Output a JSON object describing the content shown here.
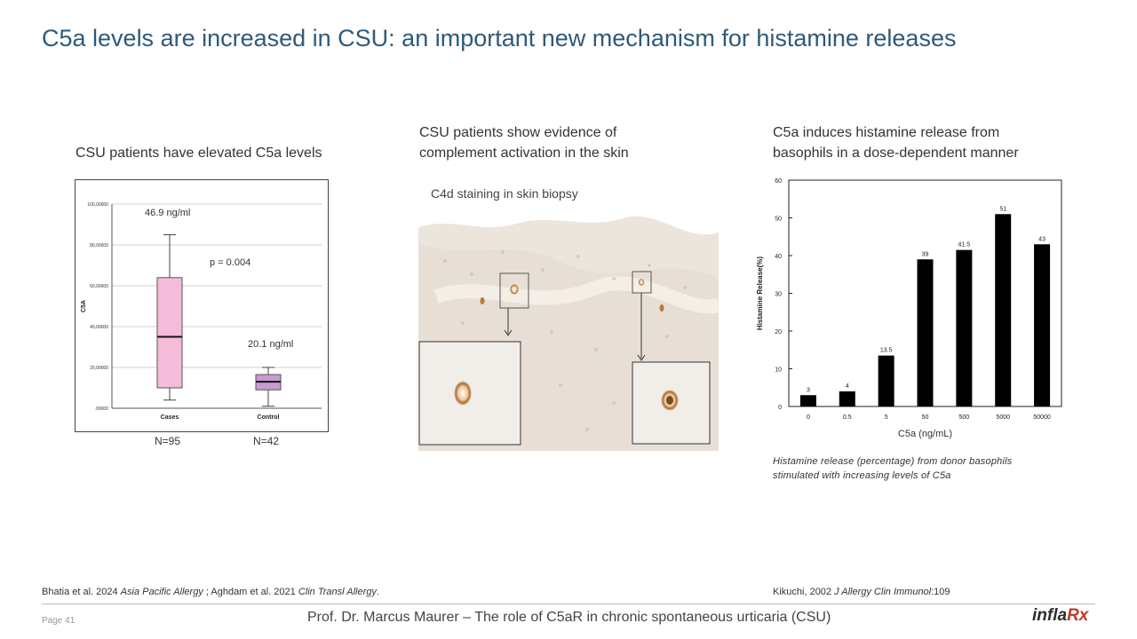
{
  "slide": {
    "title": "C5a levels are increased in CSU: an important new mechanism for histamine releases",
    "page_label": "Page 41",
    "footer_title": "Prof. Dr. Marcus Maurer – The role of C5aR in chronic spontaneous urticaria (CSU)",
    "logo_text": "infla",
    "logo_rx": "Rx"
  },
  "left_panel": {
    "heading": "CSU patients have elevated C5a levels",
    "annotation_cases": "46.9 ng/ml",
    "annotation_p": "p = 0.004",
    "annotation_control": "20.1 ng/ml",
    "n_cases": "N=95",
    "n_control": "N=42"
  },
  "middle_panel": {
    "heading_line1": "CSU patients show evidence of",
    "heading_line2": "complement activation in the skin",
    "image_label": "C4d staining in skin biopsy"
  },
  "right_panel": {
    "heading_line1": "C5a induces histamine release from",
    "heading_line2": "basophils in a dose-dependent manner",
    "caption_line1": "Histamine release (percentage) from donor basophils",
    "caption_line2": "stimulated with increasing levels of C5a"
  },
  "references": {
    "left_prefix": "Bhatia et al. 2024 ",
    "left_journal1": "Asia Pacific Allergy",
    "left_mid": "  ; Aghdam et al. 2021 ",
    "left_journal2": "Clin Transl Allergy",
    "left_suffix": ".",
    "right_prefix": "Kikuchi,  2002 ",
    "right_journal": "J Allergy Clin Immunol",
    "right_suffix": ":109"
  },
  "chart_data": [
    {
      "type": "box",
      "title": "",
      "xlabel": "",
      "ylabel": "C5A",
      "ylim": [
        0,
        100
      ],
      "y_ticks": [
        0,
        20,
        40,
        60,
        80,
        100
      ],
      "y_tick_labels": [
        ".00000",
        "20,00000",
        "40,00000",
        "60,00000",
        "80,00000",
        "100,00000"
      ],
      "categories": [
        "Cases",
        "Control"
      ],
      "series": [
        {
          "name": "Cases",
          "whisker_low": 4,
          "q1": 10,
          "median": 35,
          "q3": 64,
          "whisker_high": 85,
          "color": "#f5bcd9"
        },
        {
          "name": "Control",
          "whisker_low": 1,
          "q1": 9,
          "median": 13,
          "q3": 16.5,
          "whisker_high": 20,
          "color": "#c89bd0"
        }
      ]
    },
    {
      "type": "bar",
      "title": "",
      "xlabel": "C5a (ng/mL)",
      "ylabel": "Histamine Release(%)",
      "ylim": [
        0,
        60
      ],
      "y_ticks": [
        0,
        10,
        20,
        30,
        40,
        50,
        60
      ],
      "categories": [
        "0",
        "0.5",
        "5",
        "50",
        "500",
        "5000",
        "50000"
      ],
      "values": [
        3,
        4,
        13.5,
        39,
        41.5,
        51,
        43
      ],
      "value_labels": [
        "3",
        "4",
        "13.5",
        "39",
        "41.5",
        "51",
        "43"
      ],
      "color": "#000000"
    }
  ]
}
